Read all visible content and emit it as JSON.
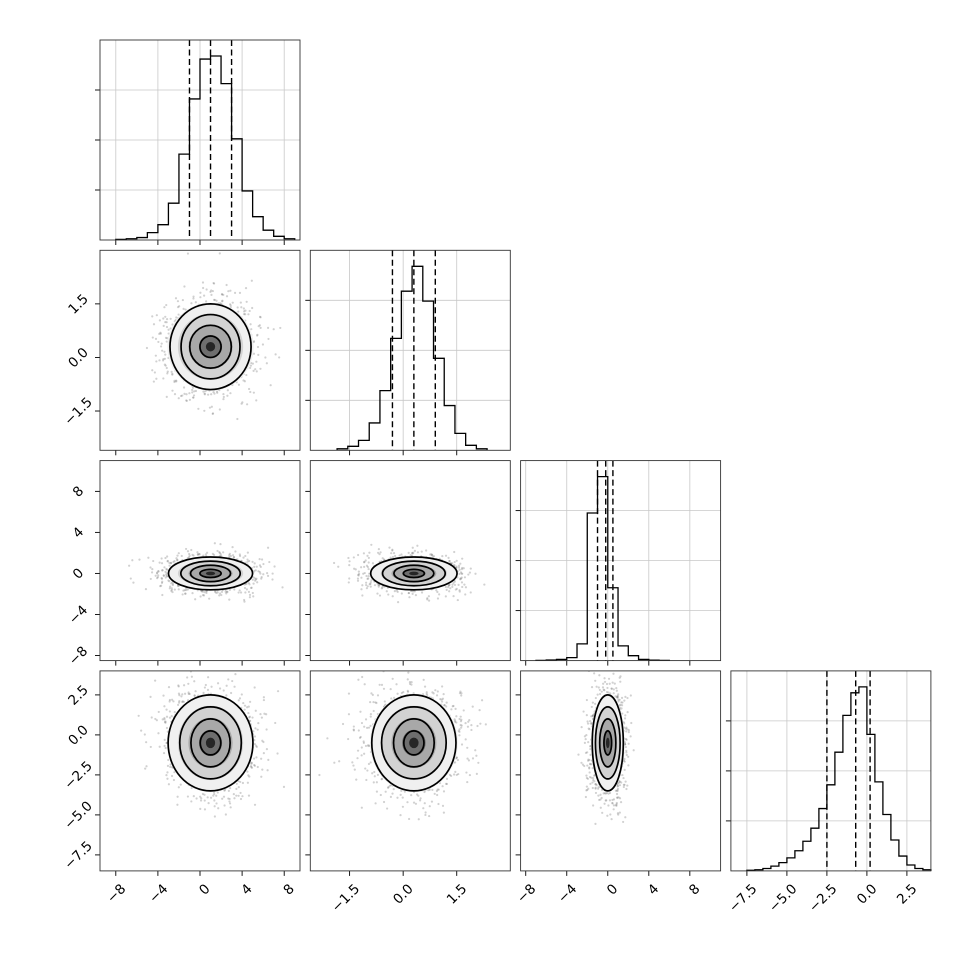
{
  "chart_data": {
    "type": "corner",
    "grid": true,
    "parameters": [
      {
        "index": 0,
        "range": [
          -9.5,
          9.5
        ],
        "ticks": [
          -8,
          -4,
          0,
          4,
          8
        ],
        "tick_labels": [
          "−8",
          "−4",
          "0",
          "4",
          "8"
        ],
        "mean": 1.0,
        "std": 2.0,
        "quantiles": [
          -1.0,
          1.0,
          3.0
        ],
        "hist_centers": [
          -7.5,
          -6.5,
          -5.5,
          -4.5,
          -3.5,
          -2.5,
          -1.5,
          -0.5,
          0.5,
          1.5,
          2.5,
          3.5,
          4.5,
          5.5,
          6.5,
          7.5,
          8.5
        ],
        "hist_counts": [
          1,
          2,
          4,
          12,
          25,
          60,
          140,
          230,
          295,
          300,
          255,
          165,
          80,
          38,
          16,
          6,
          2
        ]
      },
      {
        "index": 1,
        "range": [
          -2.6,
          3.0
        ],
        "ticks": [
          -1.5,
          0.0,
          1.5
        ],
        "tick_labels": [
          "−1.5",
          "0.0",
          "1.5"
        ],
        "mean": 0.3,
        "std": 0.6,
        "quantiles": [
          -0.3,
          0.3,
          0.9
        ],
        "hist_centers": [
          -1.7,
          -1.4,
          -1.1,
          -0.8,
          -0.5,
          -0.2,
          0.1,
          0.4,
          0.7,
          1.0,
          1.3,
          1.6,
          1.9,
          2.2
        ],
        "hist_counts": [
          3,
          8,
          20,
          55,
          120,
          225,
          320,
          370,
          300,
          185,
          90,
          34,
          10,
          3
        ]
      },
      {
        "index": 2,
        "range": [
          -8.5,
          11.0
        ],
        "ticks": [
          -8,
          -4,
          0,
          4,
          8
        ],
        "tick_labels": [
          "−8",
          "−4",
          "0",
          "4",
          "8"
        ],
        "mean": 0.0,
        "std": 0.8,
        "quantiles": [
          -1.0,
          -0.2,
          0.5
        ],
        "hist_centers": [
          -6.5,
          -5.5,
          -4.5,
          -3.5,
          -2.5,
          -1.5,
          -0.5,
          0.5,
          1.5,
          2.5,
          3.5,
          4.5,
          5.5
        ],
        "hist_counts": [
          1,
          3,
          6,
          15,
          85,
          750,
          935,
          370,
          75,
          25,
          6,
          2,
          1
        ]
      },
      {
        "index": 3,
        "range": [
          -8.5,
          4.0
        ],
        "ticks": [
          -7.5,
          -5.0,
          -2.5,
          0.0,
          2.5
        ],
        "tick_labels": [
          "−7.5",
          "−5.0",
          "−2.5",
          "0.0",
          "2.5"
        ],
        "mean": -0.5,
        "std": 1.5,
        "quantiles": [
          -2.5,
          -0.7,
          0.2
        ],
        "hist_centers": [
          -7.25,
          -6.75,
          -6.25,
          -5.75,
          -5.25,
          -4.75,
          -4.25,
          -3.75,
          -3.25,
          -2.75,
          -2.25,
          -1.75,
          -1.25,
          -0.75,
          -0.25,
          0.25,
          0.75,
          1.25,
          1.75,
          2.25,
          2.75,
          3.25,
          3.75
        ],
        "hist_counts": [
          1,
          2,
          4,
          8,
          14,
          22,
          34,
          50,
          72,
          105,
          145,
          200,
          262,
          300,
          310,
          230,
          150,
          95,
          52,
          25,
          10,
          4,
          2
        ]
      }
    ],
    "contour_levels_sigma": [
      0.5,
      1.0,
      1.5,
      2.0
    ]
  }
}
